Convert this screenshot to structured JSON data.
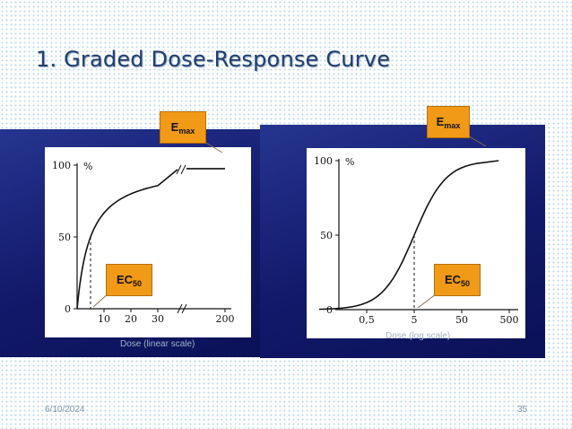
{
  "slide": {
    "title": "1. Graded Dose-Response Curve",
    "date": "6/10/2024",
    "page_number": "35"
  },
  "colors": {
    "panel": "#1b2580",
    "callout": "#f19a17",
    "title": "#1e3f72",
    "curve": "#111111"
  },
  "chart_data": [
    {
      "type": "line",
      "x_scale": "linear",
      "xlabel": "Dose (linear scale)",
      "ylabel": "%",
      "ylim": [
        0,
        100
      ],
      "yticks": [
        "0",
        "50",
        "100"
      ],
      "xticks": [
        "10",
        "20",
        "30",
        "200"
      ],
      "axis_break": true,
      "ec50": 5,
      "series": [
        {
          "x": [
            0,
            2.5,
            5,
            7.5,
            10,
            15,
            20,
            25,
            30,
            200
          ],
          "y": [
            0,
            33,
            50,
            60,
            67,
            75,
            80,
            83,
            86,
            98
          ]
        }
      ],
      "callouts": {
        "emax_main": "E",
        "emax_sub": "max",
        "ec50_main": "EC",
        "ec50_sub": "50"
      }
    },
    {
      "type": "line",
      "x_scale": "log",
      "xlabel": "Dose (log scale)",
      "ylabel": "%",
      "ylim": [
        0,
        100
      ],
      "yticks": [
        "0",
        "50",
        "100"
      ],
      "xticks": [
        "0,5",
        "5",
        "50",
        "500"
      ],
      "ec50": 5,
      "series": [
        {
          "x": [
            0.05,
            0.1,
            0.2,
            0.5,
            1,
            2,
            3,
            5,
            8,
            15,
            30,
            60,
            120,
            300
          ],
          "y": [
            1,
            2,
            4,
            9,
            17,
            29,
            38,
            50,
            62,
            75,
            86,
            93,
            97,
            100
          ]
        }
      ],
      "callouts": {
        "emax_main": "E",
        "emax_sub": "max",
        "ec50_main": "EC",
        "ec50_sub": "50"
      }
    }
  ]
}
